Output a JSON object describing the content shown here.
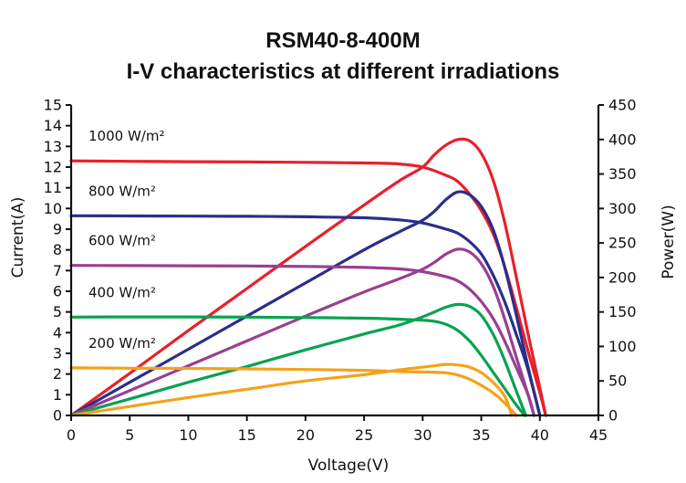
{
  "chart_data": {
    "type": "line",
    "title": "RSM40-8-400M",
    "subtitle": "I-V characteristics at different irradiations",
    "xlabel": "Voltage(V)",
    "ylabel": "Current(A)",
    "y2label": "Power(W)",
    "xlim": [
      0,
      45
    ],
    "ylim": [
      0,
      15
    ],
    "y2lim": [
      0,
      450
    ],
    "xticks": [
      0,
      5,
      10,
      15,
      20,
      25,
      30,
      35,
      40,
      45
    ],
    "yticks": [
      0,
      1,
      2,
      3,
      4,
      5,
      6,
      7,
      8,
      9,
      10,
      11,
      12,
      13,
      14,
      15
    ],
    "y2ticks": [
      0,
      50,
      100,
      150,
      200,
      250,
      300,
      350,
      400,
      450
    ],
    "grid": false,
    "series": [
      {
        "name": "1000 W/m²",
        "color": "#e8202a",
        "iv": [
          [
            0,
            12.3
          ],
          [
            5,
            12.28
          ],
          [
            10,
            12.26
          ],
          [
            15,
            12.25
          ],
          [
            20,
            12.23
          ],
          [
            25,
            12.2
          ],
          [
            28,
            12.15
          ],
          [
            30,
            12.0
          ],
          [
            32,
            11.6
          ],
          [
            33,
            11.3
          ],
          [
            34,
            10.7
          ],
          [
            35,
            9.9
          ],
          [
            36,
            8.8
          ],
          [
            37,
            7.2
          ],
          [
            38,
            5.2
          ],
          [
            39,
            3.1
          ],
          [
            40,
            1.1
          ],
          [
            40.5,
            0
          ]
        ],
        "power": [
          [
            0,
            0
          ],
          [
            5,
            61
          ],
          [
            10,
            123
          ],
          [
            15,
            184
          ],
          [
            20,
            245
          ],
          [
            25,
            305
          ],
          [
            28,
            340
          ],
          [
            30,
            360
          ],
          [
            31,
            378
          ],
          [
            32,
            392
          ],
          [
            33,
            400
          ],
          [
            34,
            398
          ],
          [
            35,
            380
          ],
          [
            36,
            342
          ],
          [
            37,
            280
          ],
          [
            38,
            200
          ],
          [
            39,
            118
          ],
          [
            40,
            40
          ],
          [
            40.5,
            0
          ]
        ]
      },
      {
        "name": "800 W/m²",
        "color": "#2b2e8a",
        "iv": [
          [
            0,
            9.65
          ],
          [
            5,
            9.64
          ],
          [
            10,
            9.63
          ],
          [
            15,
            9.62
          ],
          [
            20,
            9.6
          ],
          [
            25,
            9.55
          ],
          [
            28,
            9.45
          ],
          [
            30,
            9.3
          ],
          [
            32,
            9.0
          ],
          [
            33,
            8.8
          ],
          [
            34,
            8.4
          ],
          [
            35,
            7.8
          ],
          [
            36,
            6.8
          ],
          [
            37,
            5.5
          ],
          [
            38,
            3.9
          ],
          [
            39,
            2.2
          ],
          [
            40,
            0
          ]
        ],
        "power": [
          [
            0,
            0
          ],
          [
            5,
            48
          ],
          [
            10,
            96
          ],
          [
            15,
            144
          ],
          [
            20,
            192
          ],
          [
            25,
            240
          ],
          [
            28,
            266
          ],
          [
            30,
            283
          ],
          [
            31,
            296
          ],
          [
            32,
            313
          ],
          [
            33,
            324
          ],
          [
            34,
            320
          ],
          [
            35,
            303
          ],
          [
            36,
            270
          ],
          [
            37,
            215
          ],
          [
            38,
            145
          ],
          [
            39,
            70
          ],
          [
            40,
            0
          ]
        ]
      },
      {
        "name": "600 W/m²",
        "color": "#9a3e92",
        "iv": [
          [
            0,
            7.25
          ],
          [
            5,
            7.24
          ],
          [
            10,
            7.23
          ],
          [
            15,
            7.22
          ],
          [
            20,
            7.2
          ],
          [
            25,
            7.15
          ],
          [
            28,
            7.08
          ],
          [
            30,
            6.95
          ],
          [
            32,
            6.7
          ],
          [
            33,
            6.5
          ],
          [
            34,
            6.1
          ],
          [
            35,
            5.5
          ],
          [
            36,
            4.7
          ],
          [
            37,
            3.6
          ],
          [
            38,
            2.3
          ],
          [
            39,
            1.0
          ],
          [
            39.5,
            0
          ]
        ],
        "power": [
          [
            0,
            0
          ],
          [
            5,
            36
          ],
          [
            10,
            72
          ],
          [
            15,
            108
          ],
          [
            20,
            144
          ],
          [
            25,
            179
          ],
          [
            28,
            198
          ],
          [
            30,
            212
          ],
          [
            31,
            222
          ],
          [
            32,
            234
          ],
          [
            33,
            241
          ],
          [
            34,
            237
          ],
          [
            35,
            220
          ],
          [
            36,
            188
          ],
          [
            37,
            140
          ],
          [
            38,
            84
          ],
          [
            39,
            30
          ],
          [
            39.5,
            0
          ]
        ]
      },
      {
        "name": "400 W/m²",
        "color": "#0aa250",
        "iv": [
          [
            0,
            4.75
          ],
          [
            5,
            4.76
          ],
          [
            10,
            4.76
          ],
          [
            15,
            4.75
          ],
          [
            20,
            4.73
          ],
          [
            25,
            4.7
          ],
          [
            28,
            4.65
          ],
          [
            30,
            4.6
          ],
          [
            31,
            4.55
          ],
          [
            32,
            4.4
          ],
          [
            33,
            4.1
          ],
          [
            34,
            3.6
          ],
          [
            35,
            2.9
          ],
          [
            36,
            2.1
          ],
          [
            37,
            1.3
          ],
          [
            38,
            0.5
          ],
          [
            38.7,
            0
          ]
        ],
        "power": [
          [
            0,
            0
          ],
          [
            5,
            24
          ],
          [
            10,
            48
          ],
          [
            15,
            71
          ],
          [
            20,
            95
          ],
          [
            25,
            118
          ],
          [
            28,
            131
          ],
          [
            30,
            143
          ],
          [
            31,
            150
          ],
          [
            32,
            157
          ],
          [
            33,
            161
          ],
          [
            34,
            158
          ],
          [
            35,
            145
          ],
          [
            36,
            118
          ],
          [
            37,
            80
          ],
          [
            38,
            35
          ],
          [
            38.8,
            0
          ]
        ]
      },
      {
        "name": "200 W/m²",
        "color": "#f4a21b",
        "iv": [
          [
            0,
            2.3
          ],
          [
            5,
            2.28
          ],
          [
            10,
            2.27
          ],
          [
            15,
            2.25
          ],
          [
            20,
            2.22
          ],
          [
            25,
            2.18
          ],
          [
            28,
            2.12
          ],
          [
            30,
            2.1
          ],
          [
            32,
            2.06
          ],
          [
            33,
            1.95
          ],
          [
            34,
            1.75
          ],
          [
            35,
            1.45
          ],
          [
            36,
            1.1
          ],
          [
            37,
            0.6
          ],
          [
            38,
            0
          ]
        ],
        "power": [
          [
            0,
            0
          ],
          [
            5,
            13
          ],
          [
            10,
            26
          ],
          [
            15,
            38
          ],
          [
            20,
            50
          ],
          [
            25,
            59
          ],
          [
            28,
            66
          ],
          [
            30,
            70
          ],
          [
            31,
            72
          ],
          [
            32,
            74
          ],
          [
            33,
            73
          ],
          [
            34,
            70
          ],
          [
            35,
            62
          ],
          [
            36,
            48
          ],
          [
            37,
            28
          ],
          [
            37.6,
            0
          ]
        ]
      }
    ],
    "annotations": [
      "1000 W/m²",
      "800 W/m²",
      "600 W/m²",
      "400 W/m²",
      "200 W/m²"
    ]
  }
}
